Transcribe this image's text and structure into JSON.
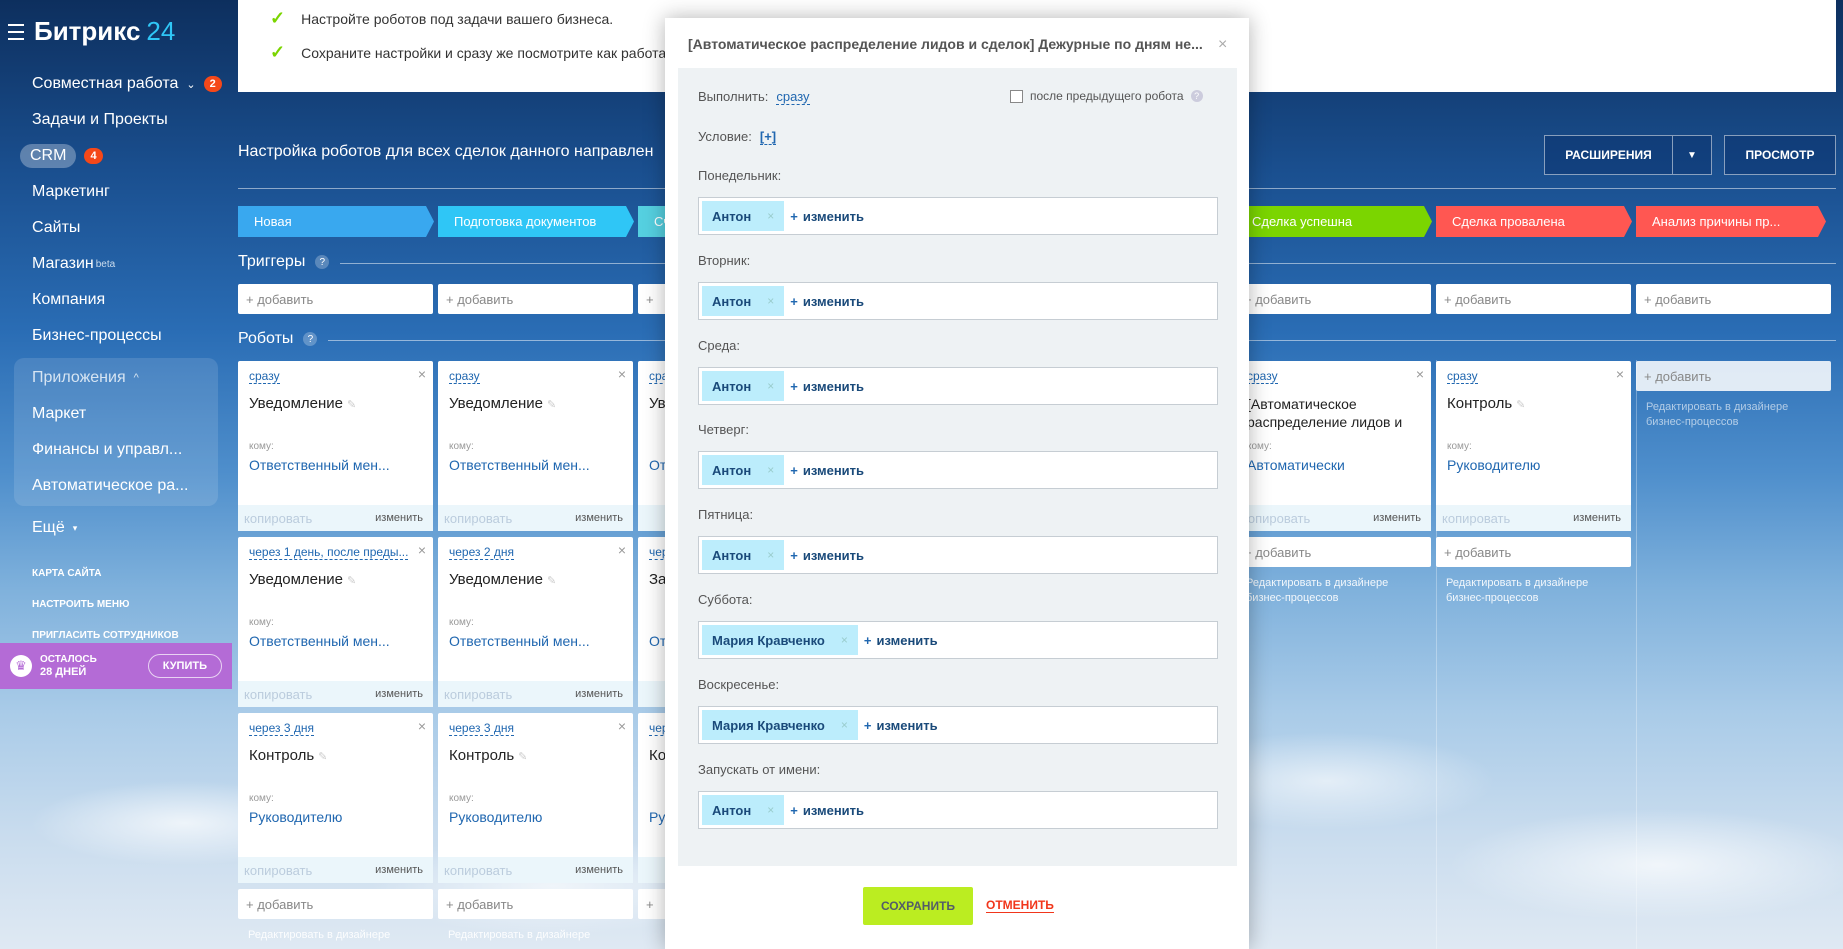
{
  "app": {
    "logo_name": "Битрикс",
    "logo_num": "24"
  },
  "sidebar": {
    "items": [
      {
        "label": "Совместная работа",
        "badge": "2"
      },
      {
        "label": "Задачи и Проекты"
      },
      {
        "label": "CRM",
        "badge": "4"
      },
      {
        "label": "Маркетинг"
      },
      {
        "label": "Сайты"
      },
      {
        "label": "Магазин",
        "sup": "beta"
      },
      {
        "label": "Компания"
      },
      {
        "label": "Бизнес-процессы"
      }
    ],
    "apps": {
      "label": "Приложения",
      "items": [
        "Маркет",
        "Финансы и управл...",
        "Автоматическое ра..."
      ]
    },
    "more": "Ещё",
    "links": [
      "КАРТА САЙТА",
      "НАСТРОИТЬ МЕНЮ",
      "ПРИГЛАСИТЬ СОТРУДНИКОВ"
    ],
    "trial": {
      "line1": "ОСТАЛОСЬ",
      "line2": "28 ДНЕЙ",
      "buy": "КУПИТЬ"
    }
  },
  "info": [
    "Настройте роботов под задачи вашего бизнеса.",
    "Сохраните настройки и сразу же посмотрите как работа"
  ],
  "header": {
    "title": "Настройка роботов для всех сделок данного направлен",
    "extensions": "РАСШИРЕНИЯ",
    "preview": "ПРОСМОТР"
  },
  "stages": [
    {
      "label": "Новая",
      "color": "#39a8ef"
    },
    {
      "label": "Подготовка документов",
      "color": "#2fc6f6"
    },
    {
      "label": "Сч",
      "color": "#55d0e0"
    },
    {
      "label": "Сделка успешна",
      "color": "#7bd500"
    },
    {
      "label": "Сделка провалена",
      "color": "#ff5752"
    },
    {
      "label": "Анализ причины пр...",
      "color": "#ff5752"
    }
  ],
  "sections": {
    "triggers": "Триггеры",
    "robots": "Роботы",
    "help": "?"
  },
  "add_label": "+ добавить",
  "cards": {
    "copy": "копировать",
    "edit": "изменить",
    "to_label": "кому:",
    "c1a": {
      "when": "сразу",
      "name": "Уведомление",
      "to": "Ответственный мен..."
    },
    "c1b": {
      "when": "через 1 день, после преды...",
      "name": "Уведомление",
      "to": "Ответственный мен..."
    },
    "c1c": {
      "when": "через 3 дня",
      "name": "Контроль",
      "to": "Руководителю"
    },
    "c2a": {
      "when": "сразу",
      "name": "Уведомление",
      "to": "Ответственный мен..."
    },
    "c2b": {
      "when": "через 2 дня",
      "name": "Уведомление",
      "to": "Ответственный мен..."
    },
    "c2c": {
      "when": "через 3 дня",
      "name": "Контроль",
      "to": "Руководителю"
    },
    "c3a": {
      "when": "сра",
      "name": "Ув",
      "to": "От"
    },
    "c3b": {
      "when": "чер",
      "name": "Зап",
      "to": "От"
    },
    "c3c": {
      "when": "чер",
      "name": "Кон",
      "to": "Ру"
    },
    "c4a": {
      "when": "сразу",
      "name": "[Автоматическое распределение лидов и",
      "to": "Автоматически"
    },
    "c5a": {
      "when": "сразу",
      "name": "Контроль",
      "to": "Руководителю"
    }
  },
  "designer": {
    "line1": "Редактировать в дизайнере",
    "line2": "бизнес-процессов"
  },
  "modal": {
    "title": "[Автоматическое распределение лидов и сделок] Дежурные по дням не...",
    "execute_label": "Выполнить:",
    "execute_value": "сразу",
    "after_prev": "после предыдущего робота",
    "condition_label": "Условие:",
    "condition_value": "[+]",
    "change": "изменить",
    "fields": [
      {
        "label": "Понедельник:",
        "user": "Антон"
      },
      {
        "label": "Вторник:",
        "user": "Антон"
      },
      {
        "label": "Среда:",
        "user": "Антон"
      },
      {
        "label": "Четверг:",
        "user": "Антон"
      },
      {
        "label": "Пятница:",
        "user": "Антон"
      },
      {
        "label": "Суббота:",
        "user": "Мария Кравченко"
      },
      {
        "label": "Воскресенье:",
        "user": "Мария Кравченко"
      },
      {
        "label": "Запускать от имени:",
        "user": "Антон"
      }
    ],
    "save": "СОХРАНИТЬ",
    "cancel": "ОТМЕНИТЬ"
  }
}
